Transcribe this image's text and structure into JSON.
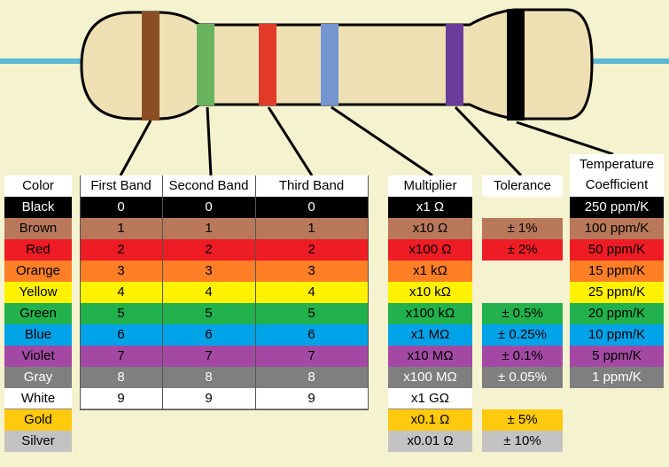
{
  "headers": {
    "color": "Color",
    "band1": "First Band",
    "band2": "Second Band",
    "band3": "Third Band",
    "multiplier": "Multiplier",
    "tolerance": "Tolerance",
    "tempco_line1": "Temperature",
    "tempco_line2": "Coefficient"
  },
  "rows": [
    {
      "name": "Black",
      "bg": "#000000",
      "fg": "#ffffff",
      "digit": "0",
      "multiplier": "x1 Ω",
      "tolerance": "",
      "tempco": "250 ppm/K"
    },
    {
      "name": "Brown",
      "bg": "#b9785a",
      "fg": "#000000",
      "digit": "1",
      "multiplier": "x10 Ω",
      "tolerance": "± 1%",
      "tempco": "100 ppm/K"
    },
    {
      "name": "Red",
      "bg": "#ee1c24",
      "fg": "#000000",
      "digit": "2",
      "multiplier": "x100 Ω",
      "tolerance": "± 2%",
      "tempco": "50 ppm/K"
    },
    {
      "name": "Orange",
      "bg": "#ff7f27",
      "fg": "#000000",
      "digit": "3",
      "multiplier": "x1 kΩ",
      "tolerance": "",
      "tempco": "15 ppm/K"
    },
    {
      "name": "Yellow",
      "bg": "#fff200",
      "fg": "#000000",
      "digit": "4",
      "multiplier": "x10 kΩ",
      "tolerance": "",
      "tempco": "25 ppm/K"
    },
    {
      "name": "Green",
      "bg": "#22b14c",
      "fg": "#000000",
      "digit": "5",
      "multiplier": "x100 kΩ",
      "tolerance": "± 0.5%",
      "tempco": "20 ppm/K"
    },
    {
      "name": "Blue",
      "bg": "#00a2e8",
      "fg": "#000000",
      "digit": "6",
      "multiplier": "x1 MΩ",
      "tolerance": "± 0.25%",
      "tempco": "10 ppm/K"
    },
    {
      "name": "Violet",
      "bg": "#a349a4",
      "fg": "#000000",
      "digit": "7",
      "multiplier": "x10 MΩ",
      "tolerance": "± 0.1%",
      "tempco": "5 ppm/K"
    },
    {
      "name": "Gray",
      "bg": "#7f7f7f",
      "fg": "#ffffff",
      "digit": "8",
      "multiplier": "x100 MΩ",
      "tolerance": "± 0.05%",
      "tempco": "1 ppm/K"
    },
    {
      "name": "White",
      "bg": "#ffffff",
      "fg": "#000000",
      "digit": "9",
      "multiplier": "x1 GΩ",
      "tolerance": "",
      "tempco": ""
    },
    {
      "name": "Gold",
      "bg": "#ffc90e",
      "fg": "#000000",
      "digit": "",
      "multiplier": "x0.1 Ω",
      "tolerance": "± 5%",
      "tempco": ""
    },
    {
      "name": "Silver",
      "bg": "#c3c3c3",
      "fg": "#000000",
      "digit": "",
      "multiplier": "x0.01 Ω",
      "tolerance": "± 10%",
      "tempco": ""
    }
  ],
  "resistor": {
    "body_color": "#efe0b4",
    "lead_color": "#5ab7d4",
    "bands": [
      {
        "label": "first-band",
        "color": "#8b4e22"
      },
      {
        "label": "second-band",
        "color": "#6ab35e"
      },
      {
        "label": "third-band",
        "color": "#e23a28"
      },
      {
        "label": "multiplier-band",
        "color": "#7595d1"
      },
      {
        "label": "tolerance-band",
        "color": "#6a3d9a"
      },
      {
        "label": "tempco-band",
        "color": "#000000"
      }
    ]
  }
}
